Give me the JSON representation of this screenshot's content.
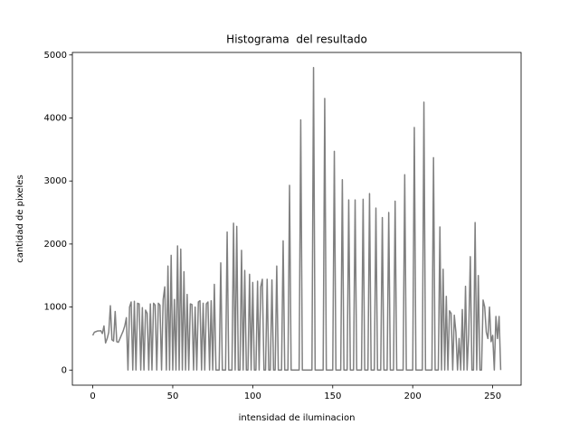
{
  "chart_data": {
    "type": "line",
    "title": "Histograma  del resultado",
    "xlabel": "intensidad de iluminacion",
    "ylabel": "cantidad de pixeles",
    "color": "#808080",
    "xlim": [
      -12.75,
      267.75
    ],
    "xticks": [
      0,
      50,
      100,
      150,
      200,
      250
    ],
    "ylim": [
      -240,
      5040
    ],
    "yticks": [
      0,
      1000,
      2000,
      3000,
      4000,
      5000
    ],
    "grid": false,
    "x": [
      0,
      1,
      2,
      3,
      4,
      5,
      6,
      7,
      8,
      9,
      10,
      11,
      12,
      13,
      14,
      15,
      16,
      17,
      18,
      19,
      20,
      21,
      22,
      23,
      24,
      25,
      26,
      27,
      28,
      29,
      30,
      31,
      32,
      33,
      34,
      35,
      36,
      37,
      38,
      39,
      40,
      41,
      42,
      43,
      44,
      45,
      46,
      47,
      48,
      49,
      50,
      51,
      52,
      53,
      54,
      55,
      56,
      57,
      58,
      59,
      60,
      61,
      62,
      63,
      64,
      65,
      66,
      67,
      68,
      69,
      70,
      71,
      72,
      73,
      74,
      75,
      76,
      77,
      78,
      79,
      80,
      81,
      82,
      83,
      84,
      85,
      86,
      87,
      88,
      89,
      90,
      91,
      92,
      93,
      94,
      95,
      96,
      97,
      98,
      99,
      100,
      101,
      102,
      103,
      104,
      105,
      106,
      107,
      108,
      109,
      110,
      111,
      112,
      113,
      114,
      115,
      116,
      117,
      118,
      119,
      120,
      121,
      122,
      123,
      124,
      125,
      126,
      127,
      128,
      129,
      130,
      131,
      132,
      133,
      134,
      135,
      136,
      137,
      138,
      139,
      140,
      141,
      142,
      143,
      144,
      145,
      146,
      147,
      148,
      149,
      150,
      151,
      152,
      153,
      154,
      155,
      156,
      157,
      158,
      159,
      160,
      161,
      162,
      163,
      164,
      165,
      166,
      167,
      168,
      169,
      170,
      171,
      172,
      173,
      174,
      175,
      176,
      177,
      178,
      179,
      180,
      181,
      182,
      183,
      184,
      185,
      186,
      187,
      188,
      189,
      190,
      191,
      192,
      193,
      194,
      195,
      196,
      197,
      198,
      199,
      200,
      201,
      202,
      203,
      204,
      205,
      206,
      207,
      208,
      209,
      210,
      211,
      212,
      213,
      214,
      215,
      216,
      217,
      218,
      219,
      220,
      221,
      222,
      223,
      224,
      225,
      226,
      227,
      228,
      229,
      230,
      231,
      232,
      233,
      234,
      235,
      236,
      237,
      238,
      239,
      240,
      241,
      242,
      243,
      244,
      245,
      246,
      247,
      248,
      249,
      250,
      251,
      252,
      253,
      254,
      255
    ],
    "values": [
      550,
      600,
      610,
      620,
      620,
      625,
      580,
      700,
      430,
      500,
      600,
      1020,
      480,
      460,
      930,
      450,
      440,
      500,
      560,
      620,
      700,
      830,
      0,
      1000,
      1080,
      0,
      1090,
      0,
      1060,
      1050,
      0,
      990,
      0,
      950,
      900,
      0,
      1050,
      0,
      1060,
      1030,
      0,
      1060,
      1030,
      0,
      1120,
      1320,
      0,
      1650,
      0,
      1820,
      0,
      1120,
      0,
      1970,
      0,
      1920,
      0,
      1560,
      0,
      1200,
      0,
      1050,
      1040,
      0,
      1000,
      0,
      1080,
      1100,
      0,
      1060,
      0,
      1050,
      1080,
      0,
      1100,
      0,
      1360,
      0,
      0,
      0,
      1700,
      0,
      0,
      0,
      2190,
      0,
      0,
      0,
      2330,
      0,
      2280,
      0,
      0,
      1900,
      0,
      1580,
      0,
      0,
      1520,
      0,
      1390,
      0,
      0,
      1410,
      0,
      1320,
      1440,
      0,
      0,
      1440,
      0,
      0,
      1430,
      0,
      0,
      1650,
      0,
      0,
      0,
      2050,
      0,
      0,
      0,
      2930,
      0,
      0,
      0,
      0,
      0,
      0,
      3970,
      0,
      0,
      0,
      0,
      0,
      0,
      0,
      4800,
      0,
      0,
      0,
      0,
      0,
      0,
      4310,
      0,
      0,
      0,
      0,
      0,
      3470,
      0,
      0,
      0,
      0,
      3020,
      0,
      0,
      0,
      2700,
      0,
      0,
      0,
      2700,
      0,
      0,
      0,
      0,
      2710,
      0,
      0,
      0,
      2800,
      0,
      0,
      0,
      2570,
      0,
      0,
      0,
      2420,
      0,
      0,
      0,
      2500,
      0,
      0,
      0,
      2680,
      0,
      0,
      0,
      0,
      0,
      3100,
      0,
      0,
      0,
      0,
      0,
      3850,
      0,
      0,
      0,
      0,
      0,
      4250,
      0,
      0,
      0,
      0,
      0,
      3370,
      0,
      0,
      0,
      2270,
      0,
      1600,
      0,
      1170,
      0,
      940,
      900,
      0,
      870,
      600,
      0,
      500,
      0,
      960,
      0,
      1330,
      0,
      570,
      1800,
      0,
      0,
      2340,
      0,
      1500,
      0,
      0,
      1110,
      1000,
      600,
      500,
      1000,
      450,
      550,
      0,
      850,
      500,
      850,
      0
    ]
  }
}
